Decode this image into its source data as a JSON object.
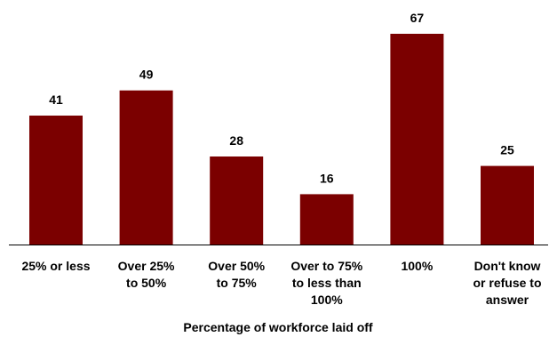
{
  "chart_data": {
    "type": "bar",
    "title": "",
    "xlabel": "Percentage of workforce laid off",
    "ylabel": "",
    "categories": [
      [
        "25% or less"
      ],
      [
        "Over 25%",
        "to 50%"
      ],
      [
        "Over 50%",
        "to 75%"
      ],
      [
        "Over to 75%",
        "to less than",
        "100%"
      ],
      [
        "100%"
      ],
      [
        "Don't know",
        "or refuse to",
        "answer"
      ]
    ],
    "values": [
      41,
      49,
      28,
      16,
      67,
      25
    ],
    "ylim": [
      0,
      70
    ],
    "grid": false,
    "legend": "none",
    "bar_color": "#7B0000",
    "axis_color": "#000000"
  }
}
